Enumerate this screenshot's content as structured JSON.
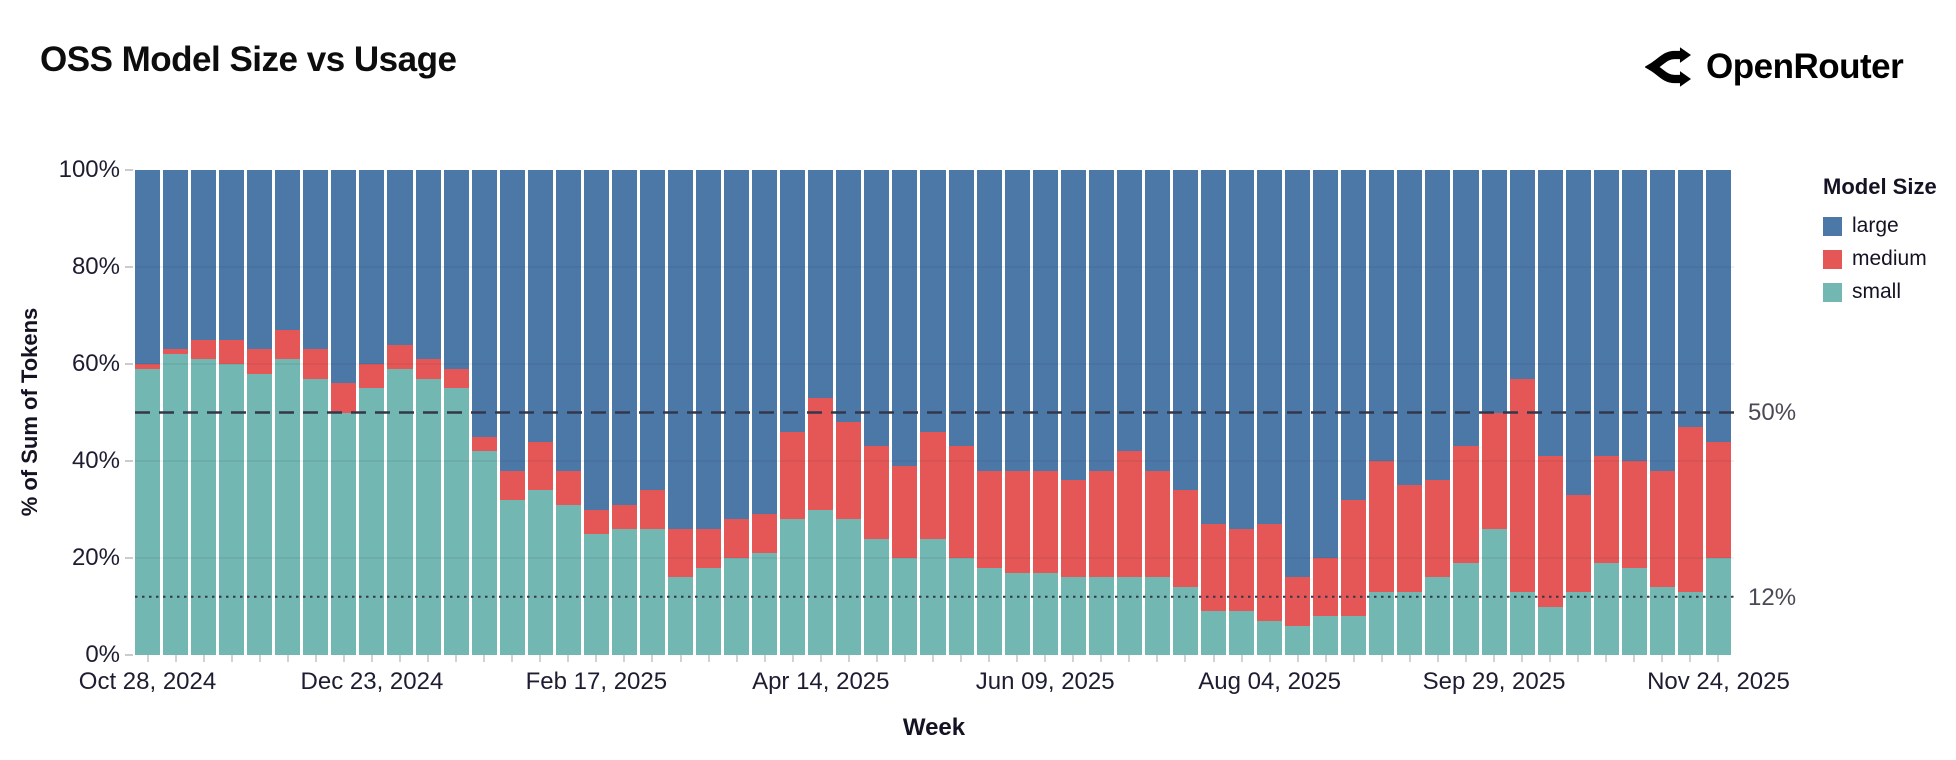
{
  "page": {
    "title": "OSS Model Size vs Usage",
    "brand": "OpenRouter"
  },
  "colors": {
    "large": "#4c78a8",
    "medium": "#e45756",
    "small": "#72b7b2"
  },
  "chart_data": {
    "type": "bar",
    "stacked": true,
    "title": "OSS Model Size vs Usage",
    "xlabel": "Week",
    "ylabel": "% of Sum of Tokens",
    "ylim": [
      0,
      100
    ],
    "grid": true,
    "grid_values": [
      20,
      40,
      60,
      80
    ],
    "y_ticks": [
      {
        "value": 0,
        "label": "0%"
      },
      {
        "value": 20,
        "label": "20%"
      },
      {
        "value": 40,
        "label": "40%"
      },
      {
        "value": 60,
        "label": "60%"
      },
      {
        "value": 80,
        "label": "80%"
      },
      {
        "value": 100,
        "label": "100%"
      }
    ],
    "x_tick_indices": [
      0,
      8,
      16,
      24,
      32,
      40,
      48,
      56
    ],
    "x_tick_labels": [
      "Oct 28, 2024",
      "Dec 23, 2024",
      "Feb 17, 2025",
      "Apr 14, 2025",
      "Jun 09, 2025",
      "Aug 04, 2025",
      "Sep 29, 2025",
      "Nov 24, 2025"
    ],
    "categories": [
      "Oct 28, 2024",
      "Nov 04, 2024",
      "Nov 11, 2024",
      "Nov 18, 2024",
      "Nov 25, 2024",
      "Dec 02, 2024",
      "Dec 09, 2024",
      "Dec 16, 2024",
      "Dec 23, 2024",
      "Dec 30, 2024",
      "Jan 06, 2025",
      "Jan 13, 2025",
      "Jan 20, 2025",
      "Jan 27, 2025",
      "Feb 03, 2025",
      "Feb 10, 2025",
      "Feb 17, 2025",
      "Feb 24, 2025",
      "Mar 03, 2025",
      "Mar 10, 2025",
      "Mar 17, 2025",
      "Mar 24, 2025",
      "Mar 31, 2025",
      "Apr 07, 2025",
      "Apr 14, 2025",
      "Apr 21, 2025",
      "Apr 28, 2025",
      "May 05, 2025",
      "May 12, 2025",
      "May 19, 2025",
      "May 26, 2025",
      "Jun 02, 2025",
      "Jun 09, 2025",
      "Jun 16, 2025",
      "Jun 23, 2025",
      "Jun 30, 2025",
      "Jul 07, 2025",
      "Jul 14, 2025",
      "Jul 21, 2025",
      "Jul 28, 2025",
      "Aug 04, 2025",
      "Aug 11, 2025",
      "Aug 18, 2025",
      "Aug 25, 2025",
      "Sep 01, 2025",
      "Sep 08, 2025",
      "Sep 15, 2025",
      "Sep 22, 2025",
      "Sep 29, 2025",
      "Oct 06, 2025",
      "Oct 13, 2025",
      "Oct 20, 2025",
      "Oct 27, 2025",
      "Nov 03, 2025",
      "Nov 10, 2025",
      "Nov 17, 2025",
      "Nov 24, 2025"
    ],
    "series": [
      {
        "name": "small",
        "color": "#72b7b2",
        "values": [
          59,
          62,
          61,
          60,
          58,
          61,
          57,
          50,
          55,
          59,
          57,
          55,
          42,
          32,
          34,
          31,
          25,
          26,
          26,
          16,
          18,
          20,
          21,
          28,
          30,
          28,
          24,
          20,
          24,
          20,
          18,
          17,
          17,
          16,
          16,
          16,
          16,
          14,
          9,
          9,
          7,
          6,
          8,
          8,
          13,
          13,
          16,
          19,
          26,
          13,
          10,
          13,
          19,
          18,
          14,
          13,
          20
        ]
      },
      {
        "name": "medium",
        "color": "#e45756",
        "values": [
          1,
          1,
          4,
          5,
          5,
          6,
          6,
          6,
          5,
          5,
          4,
          4,
          3,
          6,
          10,
          7,
          5,
          5,
          8,
          10,
          8,
          8,
          8,
          18,
          23,
          20,
          19,
          19,
          22,
          23,
          20,
          21,
          21,
          20,
          22,
          26,
          22,
          20,
          18,
          17,
          20,
          10,
          12,
          24,
          27,
          22,
          20,
          24,
          24,
          44,
          31,
          20,
          22,
          22,
          24,
          34,
          24
        ]
      },
      {
        "name": "large",
        "color": "#4c78a8",
        "values": [
          40,
          37,
          35,
          35,
          37,
          33,
          37,
          44,
          40,
          36,
          39,
          41,
          55,
          62,
          56,
          62,
          70,
          69,
          66,
          74,
          74,
          72,
          71,
          54,
          47,
          52,
          57,
          61,
          54,
          57,
          62,
          62,
          62,
          64,
          62,
          58,
          62,
          66,
          73,
          74,
          73,
          84,
          80,
          68,
          60,
          65,
          64,
          57,
          50,
          43,
          59,
          67,
          59,
          60,
          62,
          53,
          56
        ]
      }
    ],
    "reference_lines": [
      {
        "value": 50,
        "label": "50%",
        "style": "dashed"
      },
      {
        "value": 12,
        "label": "12%",
        "style": "dotted"
      }
    ],
    "legend": {
      "title": "Model Size",
      "position": "right",
      "entries": [
        {
          "name": "large",
          "color": "#4c78a8"
        },
        {
          "name": "medium",
          "color": "#e45756"
        },
        {
          "name": "small",
          "color": "#72b7b2"
        }
      ]
    }
  }
}
